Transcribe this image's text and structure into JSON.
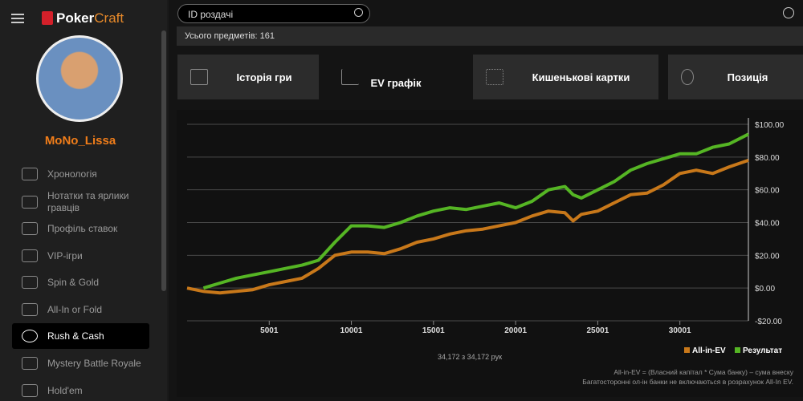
{
  "sidebar": {
    "brand": [
      "Poker",
      "Craft"
    ],
    "username": "MoNo_Lissa",
    "nav": [
      "Хронологія",
      "Нотатки та ярлики гравців",
      "Профіль ставок",
      "VIP-ігри",
      "Spin & Gold",
      "All-In or Fold",
      "Rush & Cash",
      "Mystery Battle Royale",
      "Hold'em"
    ]
  },
  "search_placeholder": "ID роздачі",
  "total": "Усього предметів: 161",
  "tabs": [
    "Історія гри",
    "EV графік",
    "Кишенькові картки",
    "Позиція"
  ],
  "chart_data": {
    "type": "line",
    "x": [
      1,
      1000,
      2000,
      3000,
      4000,
      5000,
      6000,
      7000,
      8000,
      9000,
      10000,
      11000,
      12000,
      13000,
      14000,
      15000,
      16000,
      17000,
      18000,
      19000,
      20000,
      21000,
      22000,
      23000,
      23500,
      24000,
      25000,
      26000,
      27000,
      28000,
      29000,
      30000,
      31000,
      32000,
      33000,
      34172
    ],
    "series": [
      {
        "name": "All-in-EV",
        "color": "#c8781a",
        "values": [
          0,
          -2,
          -3,
          -2,
          -1,
          2,
          4,
          6,
          12,
          20,
          22,
          22,
          21,
          24,
          28,
          30,
          33,
          35,
          36,
          38,
          40,
          44,
          47,
          46,
          41,
          45,
          47,
          52,
          57,
          58,
          63,
          70,
          72,
          70,
          74,
          78
        ]
      },
      {
        "name": "Результат",
        "color": "#55b524",
        "values": [
          null,
          0,
          3,
          6,
          8,
          10,
          12,
          14,
          17,
          28,
          38,
          38,
          37,
          40,
          44,
          47,
          49,
          48,
          50,
          52,
          49,
          53,
          60,
          62,
          57,
          55,
          60,
          65,
          72,
          76,
          79,
          82,
          82,
          86,
          88,
          94
        ]
      }
    ],
    "xlim": [
      1,
      34172
    ],
    "xticks": [
      5001,
      10001,
      15001,
      20001,
      25001,
      30001
    ],
    "ylim": [
      -20,
      100
    ],
    "yticks": [
      {
        "value": -20,
        "label": "-$20.00"
      },
      {
        "value": 0,
        "label": "$0.00"
      },
      {
        "value": 20,
        "label": "$20.00"
      },
      {
        "value": 40,
        "label": "$40.00"
      },
      {
        "value": 60,
        "label": "$60.00"
      },
      {
        "value": 80,
        "label": "$80.00"
      },
      {
        "value": 100,
        "label": "$100.00"
      }
    ],
    "grid": true,
    "caption": "34,172 з 34,172 рук",
    "notes": [
      "All-in-EV = (Власний капітал * Сума банку) – сума внеску",
      "Багатосторонні ол-ін банки не включаються в розрахунок All-In EV."
    ]
  }
}
